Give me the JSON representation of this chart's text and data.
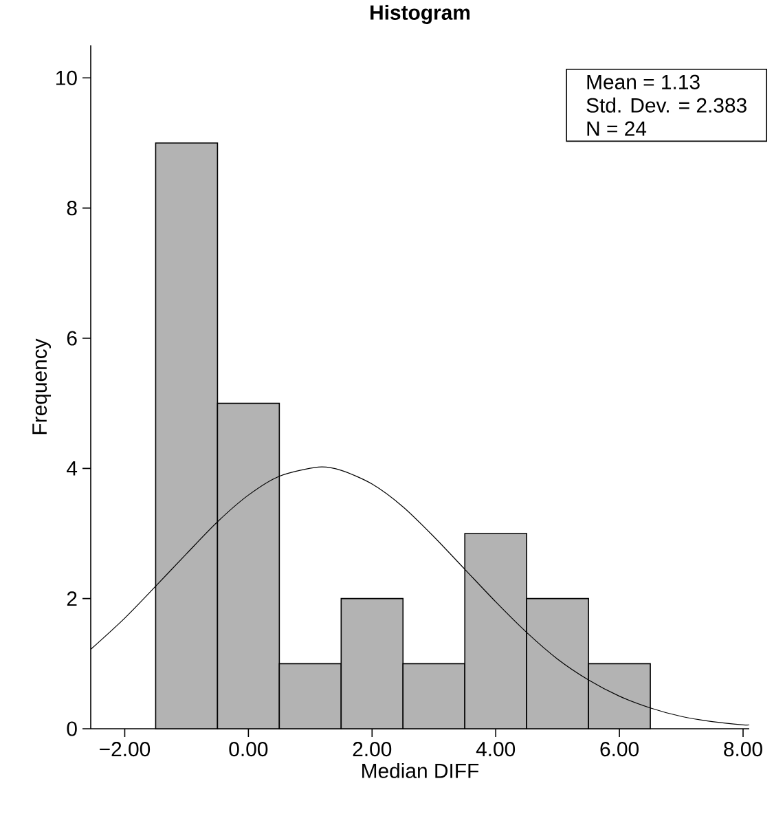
{
  "chart_data": {
    "type": "histogram",
    "title": "Histogram",
    "xlabel": "Median DIFF",
    "ylabel": "Frequency",
    "xlim": [
      -2.55,
      8.1
    ],
    "ylim": [
      0,
      10.5
    ],
    "xticks": [
      {
        "value": -2,
        "label": "−2.00"
      },
      {
        "value": 0,
        "label": "0.00"
      },
      {
        "value": 2,
        "label": "2.00"
      },
      {
        "value": 4,
        "label": "4.00"
      },
      {
        "value": 6,
        "label": "6.00"
      },
      {
        "value": 8,
        "label": "8.00"
      }
    ],
    "yticks": [
      0,
      2,
      4,
      6,
      8,
      10
    ],
    "grid": false,
    "annotations": [
      "Mean = 1.13",
      "Std. Dev. = 2.383",
      "N = 24"
    ],
    "series": [
      {
        "color": "#b3b3b3",
        "bins": [
          -1.5,
          -0.5,
          0.5,
          1.5,
          2.5,
          3.5,
          4.5,
          5.5,
          6.5
        ],
        "values": [
          9,
          5,
          1,
          2,
          1,
          3,
          2,
          1
        ]
      },
      {
        "type": "line",
        "color": "#000000",
        "x": [
          -2.55,
          -2,
          -1.5,
          -1,
          -0.5,
          0,
          0.5,
          1.13,
          1.5,
          2,
          2.5,
          3,
          3.5,
          4,
          4.5,
          5,
          5.5,
          6,
          6.5,
          7,
          7.5,
          8,
          8.1
        ],
        "values": [
          1.22,
          1.7,
          2.19,
          2.69,
          3.18,
          3.59,
          3.88,
          4.02,
          3.97,
          3.76,
          3.41,
          2.95,
          2.45,
          1.95,
          1.48,
          1.07,
          0.75,
          0.5,
          0.32,
          0.19,
          0.11,
          0.06,
          0.06
        ]
      }
    ]
  }
}
